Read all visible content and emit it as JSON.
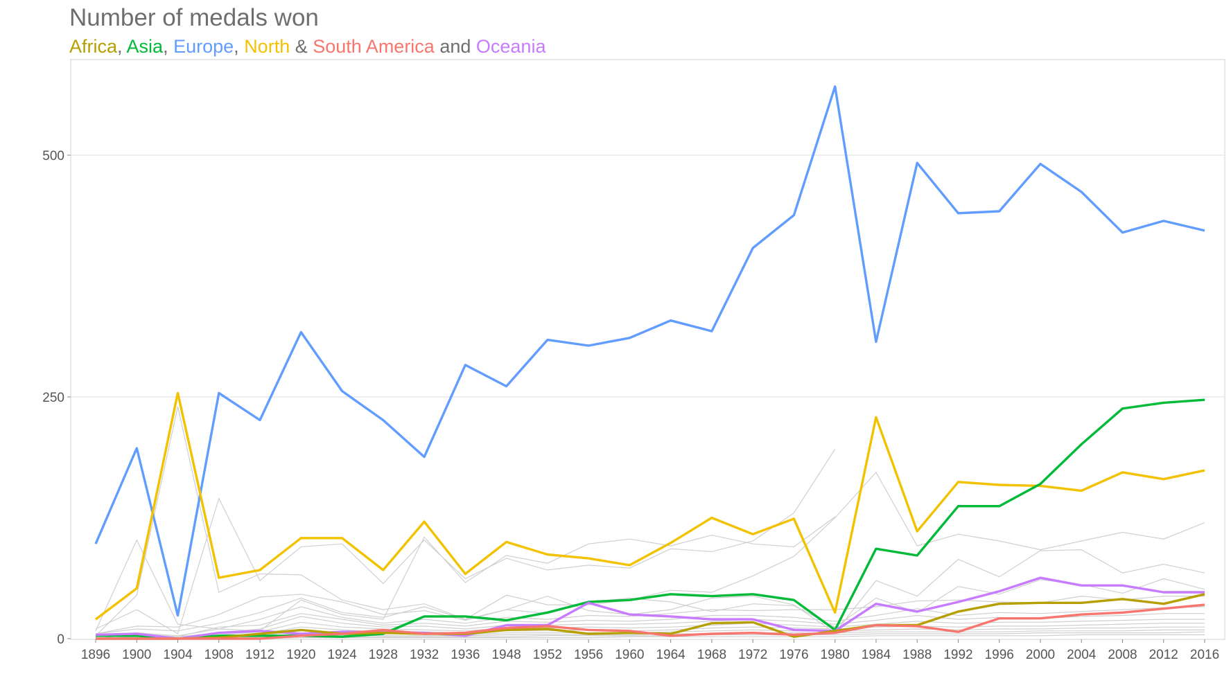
{
  "chart_data": {
    "type": "line",
    "title": "Number of medals won",
    "subtitle_parts": [
      {
        "text": "Africa",
        "color": "#b5a000"
      },
      {
        "text": ", ",
        "color": "#6e6e6e"
      },
      {
        "text": "Asia",
        "color": "#00ba38"
      },
      {
        "text": ", ",
        "color": "#6e6e6e"
      },
      {
        "text": "Europe",
        "color": "#619cff"
      },
      {
        "text": ", ",
        "color": "#6e6e6e"
      },
      {
        "text": "North",
        "color": "#f2c200"
      },
      {
        "text": " & ",
        "color": "#6e6e6e"
      },
      {
        "text": "South America",
        "color": "#f8766d"
      },
      {
        "text": " and ",
        "color": "#6e6e6e"
      },
      {
        "text": "Oceania",
        "color": "#c77cff"
      }
    ],
    "xlabel": "",
    "ylabel": "",
    "x": [
      "1896",
      "1900",
      "1904",
      "1908",
      "1912",
      "1920",
      "1924",
      "1928",
      "1932",
      "1936",
      "1948",
      "1952",
      "1956",
      "1960",
      "1964",
      "1968",
      "1972",
      "1976",
      "1980",
      "1984",
      "1988",
      "1992",
      "1996",
      "2000",
      "2004",
      "2008",
      "2012",
      "2016"
    ],
    "y_ticks": [
      0,
      250,
      500
    ],
    "ylim": [
      0,
      600
    ],
    "grid": true,
    "series": [
      {
        "name": "Europe",
        "color": "#619cff",
        "values": [
          98,
          197,
          24,
          254,
          226,
          317,
          256,
          226,
          188,
          283,
          261,
          309,
          303,
          311,
          329,
          318,
          404,
          438,
          571,
          307,
          492,
          440,
          442,
          491,
          462,
          420,
          432,
          422
        ]
      },
      {
        "name": "North",
        "color": "#f2c200",
        "values": [
          20,
          52,
          254,
          63,
          71,
          104,
          104,
          71,
          121,
          67,
          100,
          87,
          83,
          76,
          99,
          125,
          108,
          124,
          27,
          229,
          111,
          162,
          159,
          158,
          153,
          172,
          165,
          174
        ]
      },
      {
        "name": "Asia",
        "color": "#00ba38",
        "values": [
          3,
          3,
          0,
          3,
          3,
          3,
          2,
          5,
          23,
          23,
          19,
          27,
          38,
          40,
          46,
          44,
          46,
          40,
          9,
          93,
          86,
          137,
          137,
          160,
          201,
          238,
          244,
          247
        ]
      },
      {
        "name": "Oceania",
        "color": "#c77cff",
        "values": [
          4,
          5,
          0,
          6,
          8,
          5,
          7,
          7,
          6,
          3,
          14,
          14,
          37,
          25,
          23,
          20,
          20,
          9,
          8,
          36,
          28,
          38,
          49,
          63,
          55,
          55,
          48,
          48
        ]
      },
      {
        "name": "Africa",
        "color": "#b5a000",
        "values": [
          0,
          0,
          0,
          1,
          5,
          9,
          5,
          6,
          5,
          5,
          9,
          10,
          5,
          6,
          5,
          16,
          17,
          2,
          8,
          14,
          14,
          28,
          36,
          37,
          37,
          41,
          36,
          46
        ]
      },
      {
        "name": "South America",
        "color": "#f8766d",
        "values": [
          0,
          0,
          0,
          0,
          0,
          3,
          5,
          9,
          5,
          6,
          11,
          13,
          9,
          8,
          3,
          5,
          6,
          4,
          6,
          14,
          13,
          7,
          21,
          21,
          25,
          27,
          31,
          35
        ]
      }
    ],
    "background_series": [
      {
        "values": [
          8,
          102,
          15,
          10,
          8,
          40,
          25,
          20,
          105,
          58,
          86,
          78,
          98,
          103,
          96,
          107,
          98,
          95,
          126
        ]
      },
      {
        "values": [
          10,
          30,
          5,
          145,
          60,
          95,
          98,
          57,
          102,
          62,
          83,
          71,
          76,
          73,
          93,
          90,
          101,
          130,
          196
        ]
      },
      {
        "values": [
          3,
          45,
          240,
          48,
          67,
          66,
          40,
          30,
          36,
          20,
          45,
          35,
          35,
          40,
          50,
          48,
          65,
          85,
          125,
          172,
          96,
          108,
          101,
          92,
          101,
          110,
          103,
          120
        ]
      },
      {
        "values": [
          5,
          13,
          12,
          25,
          43,
          46,
          38,
          25,
          29,
          19,
          30,
          44,
          29,
          25,
          30,
          42,
          44,
          35,
          6,
          60,
          44,
          82,
          64,
          91,
          92,
          68,
          77,
          68
        ]
      },
      {
        "values": [
          5,
          10,
          8,
          16,
          27,
          42,
          27,
          22,
          33,
          20,
          30,
          26,
          38,
          42,
          38,
          28,
          36,
          34,
          12,
          42,
          27,
          54,
          46,
          61,
          56,
          47,
          62,
          51
        ]
      },
      {
        "values": [
          2,
          6,
          3,
          10,
          20,
          33,
          22,
          16,
          20,
          16,
          22,
          20,
          24,
          23,
          26,
          30,
          29,
          30,
          30,
          33,
          39,
          40,
          38,
          37,
          44,
          40,
          44,
          44
        ]
      },
      {
        "values": [
          0,
          5,
          2,
          12,
          14,
          26,
          20,
          14,
          16,
          13,
          18,
          17,
          19,
          18,
          20,
          24,
          24,
          22,
          18,
          24,
          31,
          24,
          27,
          26,
          28,
          30,
          32,
          33
        ]
      },
      {
        "values": [
          0,
          2,
          2,
          6,
          10,
          23,
          16,
          12,
          13,
          10,
          14,
          14,
          15,
          15,
          16,
          18,
          20,
          18,
          15,
          19,
          24,
          20,
          22,
          21,
          23,
          24,
          26,
          26
        ]
      },
      {
        "values": [
          0,
          1,
          0,
          4,
          7,
          17,
          12,
          10,
          9,
          8,
          11,
          11,
          12,
          11,
          12,
          14,
          16,
          14,
          12,
          15,
          18,
          16,
          17,
          17,
          18,
          19,
          20,
          20
        ]
      },
      {
        "values": [
          0,
          0,
          0,
          3,
          5,
          12,
          9,
          7,
          7,
          6,
          8,
          8,
          9,
          8,
          9,
          11,
          12,
          11,
          10,
          12,
          13,
          12,
          13,
          13,
          14,
          15,
          16,
          16
        ]
      },
      {
        "values": [
          0,
          0,
          0,
          2,
          3,
          8,
          6,
          5,
          5,
          4,
          6,
          6,
          6,
          6,
          7,
          8,
          9,
          8,
          8,
          9,
          10,
          9,
          10,
          10,
          11,
          11,
          12,
          12
        ]
      },
      {
        "values": [
          0,
          0,
          0,
          1,
          2,
          5,
          4,
          3,
          3,
          3,
          4,
          4,
          4,
          4,
          5,
          5,
          6,
          6,
          6,
          7,
          7,
          7,
          7,
          8,
          8,
          8,
          9,
          9
        ]
      },
      {
        "values": [
          0,
          0,
          0,
          0,
          1,
          3,
          2,
          2,
          2,
          2,
          2,
          3,
          3,
          3,
          3,
          4,
          4,
          4,
          4,
          5,
          5,
          5,
          5,
          6,
          6,
          6,
          6,
          7
        ]
      },
      {
        "values": [
          0,
          0,
          0,
          0,
          0,
          1,
          1,
          1,
          1,
          1,
          1,
          1,
          1,
          2,
          2,
          2,
          2,
          2,
          2,
          3,
          3,
          3,
          3,
          3,
          4,
          4,
          4,
          4
        ]
      }
    ]
  }
}
